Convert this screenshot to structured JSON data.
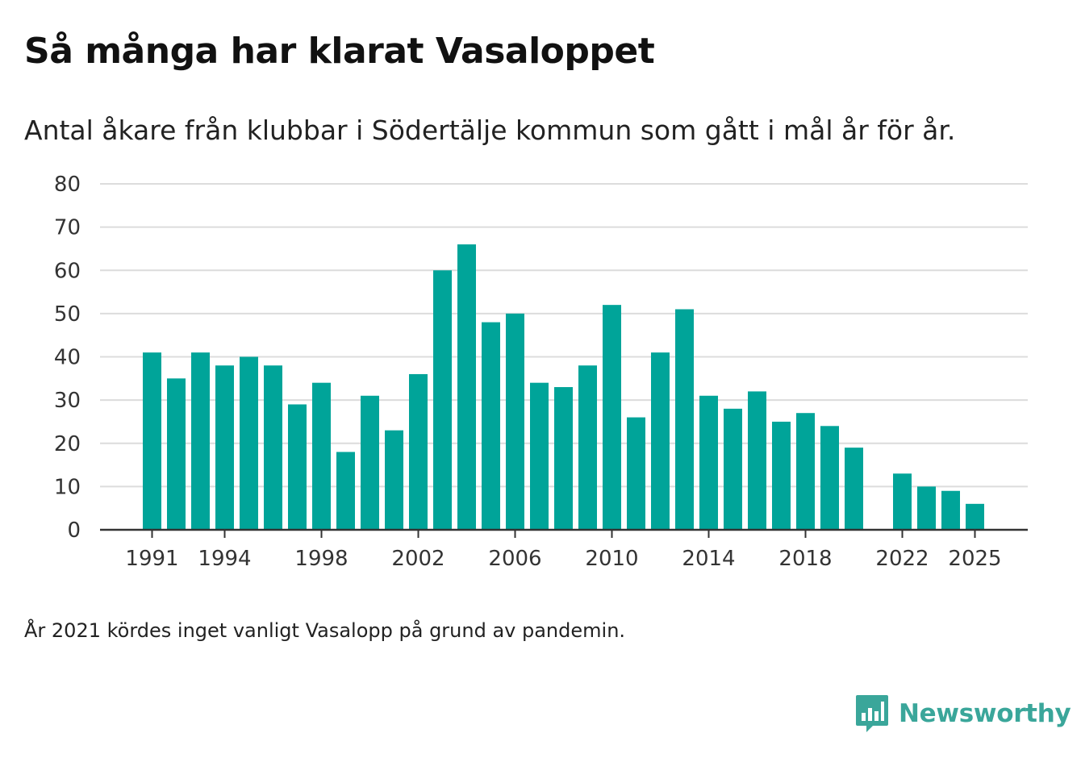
{
  "title": "Så många har klarat Vasaloppet",
  "subtitle": "Antal åkare från klubbar i Södertälje kommun som gått i mål år för år.",
  "footnote": "År 2021 kördes inget vanligt Vasalopp på grund av pandemin.",
  "brand": {
    "name": "Newsworthy",
    "color": "#3aa69a"
  },
  "chart_data": {
    "type": "bar",
    "title": "Så många har klarat Vasaloppet",
    "xlabel": "",
    "ylabel": "",
    "ylim": [
      0,
      80
    ],
    "yticks": [
      0,
      10,
      20,
      30,
      40,
      50,
      60,
      70,
      80
    ],
    "xticks": [
      "1991",
      "1994",
      "1998",
      "2002",
      "2006",
      "2010",
      "2014",
      "2018",
      "2022",
      "2025"
    ],
    "grid": true,
    "bar_color": "#00a499",
    "categories": [
      1991,
      1992,
      1993,
      1994,
      1995,
      1996,
      1997,
      1998,
      1999,
      2000,
      2001,
      2002,
      2003,
      2004,
      2005,
      2006,
      2007,
      2008,
      2009,
      2010,
      2011,
      2012,
      2013,
      2014,
      2015,
      2016,
      2017,
      2018,
      2019,
      2020,
      2021,
      2022,
      2023,
      2024,
      2025
    ],
    "values": [
      41,
      35,
      41,
      38,
      40,
      38,
      29,
      34,
      18,
      31,
      23,
      36,
      60,
      66,
      48,
      50,
      34,
      33,
      38,
      52,
      26,
      41,
      51,
      31,
      28,
      32,
      25,
      27,
      24,
      19,
      null,
      13,
      10,
      9,
      6
    ]
  }
}
